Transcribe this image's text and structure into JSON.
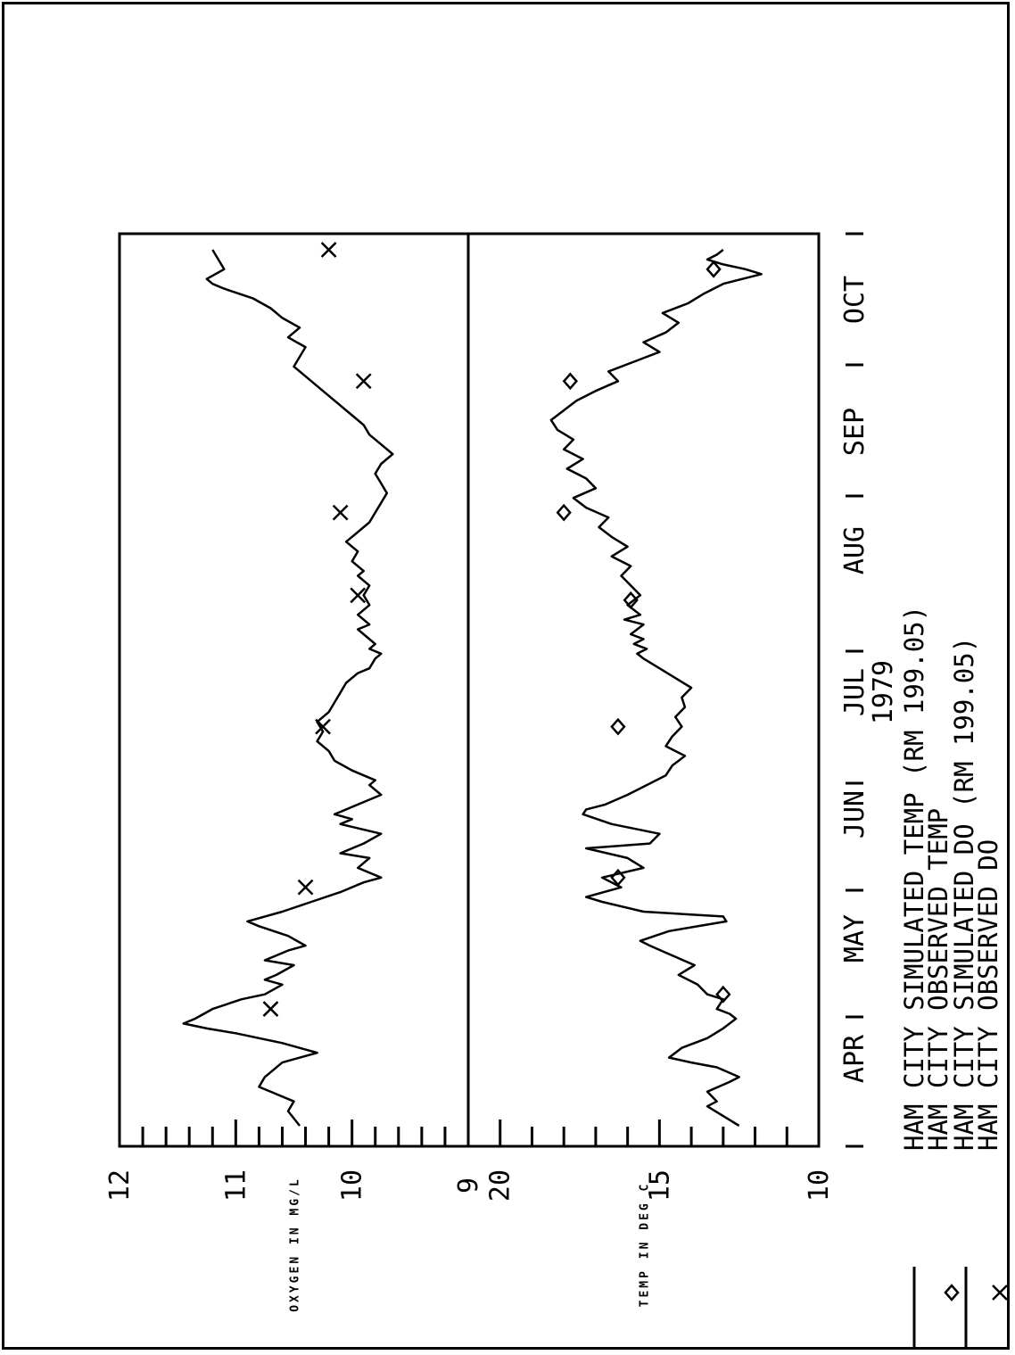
{
  "chart_data": {
    "type": "line",
    "year_label": "1979",
    "x_ticks": [
      "APR",
      "MAY",
      "JUN",
      "JUL",
      "AUG",
      "SEP",
      "OCT"
    ],
    "x_range": [
      "1979-03-20",
      "1979-10-20"
    ],
    "panels": [
      {
        "ylabel": "OXYGEN IN MG/L",
        "ylim": [
          9,
          12
        ],
        "yticks": [
          "9",
          "10",
          "11",
          "12"
        ],
        "series": [
          {
            "name": "HAM CITY SIMULATED DO (RM 199.05)",
            "style": "line",
            "points": [
              [
                0,
                10.45
              ],
              [
                3,
                10.55
              ],
              [
                5,
                10.5
              ],
              [
                8,
                10.8
              ],
              [
                10,
                10.75
              ],
              [
                13,
                10.6
              ],
              [
                15,
                10.3
              ],
              [
                17,
                10.6
              ],
              [
                19,
                11.0
              ],
              [
                20,
                11.25
              ],
              [
                21,
                11.45
              ],
              [
                22,
                11.35
              ],
              [
                24,
                11.2
              ],
              [
                26,
                10.95
              ],
              [
                27,
                10.75
              ],
              [
                29,
                10.6
              ],
              [
                30,
                10.75
              ],
              [
                31,
                10.65
              ],
              [
                33,
                10.5
              ],
              [
                34,
                10.75
              ],
              [
                36,
                10.55
              ],
              [
                37,
                10.4
              ],
              [
                39,
                10.55
              ],
              [
                41,
                10.8
              ],
              [
                42,
                10.9
              ],
              [
                44,
                10.6
              ],
              [
                46,
                10.35
              ],
              [
                48,
                10.1
              ],
              [
                50,
                9.9
              ],
              [
                51,
                9.75
              ],
              [
                53,
                9.95
              ],
              [
                55,
                9.85
              ],
              [
                56,
                10.1
              ],
              [
                58,
                9.9
              ],
              [
                60,
                9.75
              ],
              [
                62,
                10.1
              ],
              [
                63,
                10.0
              ],
              [
                64,
                10.15
              ],
              [
                66,
                9.95
              ],
              [
                68,
                9.75
              ],
              [
                70,
                9.85
              ],
              [
                71,
                9.8
              ],
              [
                73,
                10.0
              ],
              [
                75,
                10.15
              ],
              [
                77,
                10.2
              ],
              [
                79,
                10.3
              ],
              [
                81,
                10.25
              ],
              [
                83,
                10.3
              ],
              [
                85,
                10.2
              ],
              [
                87,
                10.15
              ],
              [
                89,
                10.1
              ],
              [
                91,
                10.05
              ],
              [
                93,
                9.95
              ],
              [
                94,
                9.85
              ],
              [
                96,
                9.8
              ],
              [
                97,
                9.75
              ],
              [
                98,
                9.85
              ],
              [
                99,
                9.8
              ],
              [
                101,
                9.9
              ],
              [
                102,
                9.95
              ],
              [
                103,
                9.85
              ],
              [
                105,
                9.95
              ],
              [
                107,
                9.85
              ],
              [
                109,
                9.9
              ],
              [
                111,
                9.85
              ],
              [
                113,
                9.95
              ],
              [
                114,
                9.9
              ],
              [
                116,
                10.0
              ],
              [
                118,
                9.95
              ],
              [
                120,
                10.05
              ],
              [
                122,
                9.95
              ],
              [
                124,
                9.85
              ],
              [
                126,
                9.8
              ],
              [
                128,
                9.75
              ],
              [
                130,
                9.7
              ],
              [
                132,
                9.75
              ],
              [
                134,
                9.8
              ],
              [
                136,
                9.75
              ],
              [
                138,
                9.65
              ],
              [
                140,
                9.75
              ],
              [
                142,
                9.85
              ],
              [
                144,
                9.9
              ],
              [
                146,
                10.0
              ],
              [
                148,
                10.1
              ],
              [
                150,
                10.2
              ],
              [
                152,
                10.3
              ],
              [
                154,
                10.4
              ],
              [
                156,
                10.5
              ],
              [
                158,
                10.45
              ],
              [
                160,
                10.4
              ],
              [
                162,
                10.55
              ],
              [
                164,
                10.45
              ],
              [
                166,
                10.6
              ],
              [
                168,
                10.7
              ],
              [
                170,
                10.85
              ],
              [
                172,
                11.1
              ],
              [
                173,
                11.2
              ],
              [
                174,
                11.25
              ],
              [
                176,
                11.1
              ],
              [
                178,
                11.15
              ],
              [
                180,
                11.2
              ]
            ]
          },
          {
            "name": "HAM CITY OBSERVED DO",
            "style": "marker-x",
            "points": [
              [
                24,
                10.7
              ],
              [
                49,
                10.4
              ],
              [
                82,
                10.25
              ],
              [
                109,
                9.95
              ],
              [
                126,
                10.1
              ],
              [
                153,
                9.9
              ],
              [
                180,
                10.2
              ]
            ]
          }
        ]
      },
      {
        "ylabel": "TEMP IN DEG C",
        "ylim": [
          10,
          21
        ],
        "yticks": [
          "10",
          "15",
          "20"
        ],
        "series": [
          {
            "name": "HAM CITY SIMULATED TEMP (RM 199.05)",
            "style": "line",
            "points": [
              [
                0,
                12.5
              ],
              [
                2,
                13.0
              ],
              [
                4,
                13.5
              ],
              [
                5,
                13.2
              ],
              [
                7,
                13.5
              ],
              [
                9,
                12.8
              ],
              [
                10,
                12.5
              ],
              [
                12,
                13.2
              ],
              [
                13,
                14.0
              ],
              [
                14,
                14.7
              ],
              [
                16,
                14.3
              ],
              [
                18,
                13.5
              ],
              [
                20,
                13.0
              ],
              [
                22,
                12.6
              ],
              [
                23,
                12.8
              ],
              [
                24,
                13.2
              ],
              [
                26,
                13.0
              ],
              [
                27,
                13.5
              ],
              [
                29,
                13.8
              ],
              [
                31,
                14.4
              ],
              [
                33,
                13.9
              ],
              [
                35,
                14.6
              ],
              [
                37,
                15.3
              ],
              [
                38,
                15.6
              ],
              [
                40,
                14.7
              ],
              [
                42,
                12.9
              ],
              [
                43,
                13.0
              ],
              [
                44,
                15.5
              ],
              [
                46,
                16.8
              ],
              [
                47,
                17.3
              ],
              [
                49,
                16.2
              ],
              [
                51,
                16.8
              ],
              [
                53,
                15.5
              ],
              [
                55,
                16.0
              ],
              [
                57,
                17.3
              ],
              [
                58,
                15.3
              ],
              [
                60,
                15.0
              ],
              [
                62,
                16.5
              ],
              [
                64,
                17.4
              ],
              [
                65,
                17.3
              ],
              [
                66,
                16.7
              ],
              [
                68,
                16.0
              ],
              [
                70,
                15.4
              ],
              [
                72,
                14.8
              ],
              [
                74,
                14.6
              ],
              [
                76,
                14.2
              ],
              [
                78,
                14.8
              ],
              [
                80,
                14.6
              ],
              [
                82,
                14.3
              ],
              [
                84,
                14.5
              ],
              [
                86,
                14.2
              ],
              [
                88,
                14.3
              ],
              [
                90,
                14.0
              ],
              [
                92,
                14.5
              ],
              [
                94,
                15.0
              ],
              [
                96,
                15.5
              ],
              [
                97,
                15.7
              ],
              [
                98,
                15.4
              ],
              [
                99,
                15.8
              ],
              [
                100,
                15.5
              ],
              [
                101,
                15.9
              ],
              [
                103,
                15.5
              ],
              [
                104,
                16.1
              ],
              [
                105,
                15.6
              ],
              [
                107,
                16.0
              ],
              [
                109,
                15.6
              ],
              [
                111,
                15.9
              ],
              [
                113,
                16.2
              ],
              [
                115,
                15.9
              ],
              [
                117,
                16.5
              ],
              [
                119,
                16.0
              ],
              [
                121,
                16.5
              ],
              [
                123,
                16.9
              ],
              [
                125,
                16.6
              ],
              [
                127,
                17.3
              ],
              [
                129,
                17.7
              ],
              [
                131,
                17.0
              ],
              [
                133,
                17.3
              ],
              [
                135,
                17.9
              ],
              [
                137,
                17.4
              ],
              [
                139,
                18.0
              ],
              [
                141,
                17.7
              ],
              [
                143,
                18.2
              ],
              [
                145,
                18.4
              ],
              [
                147,
                18.0
              ],
              [
                149,
                17.6
              ],
              [
                151,
                17.0
              ],
              [
                153,
                16.3
              ],
              [
                155,
                16.6
              ],
              [
                157,
                15.8
              ],
              [
                159,
                15.0
              ],
              [
                161,
                15.5
              ],
              [
                163,
                14.8
              ],
              [
                165,
                14.4
              ],
              [
                167,
                14.9
              ],
              [
                169,
                14.1
              ],
              [
                171,
                13.6
              ],
              [
                173,
                13.0
              ],
              [
                174,
                12.4
              ],
              [
                175,
                11.8
              ],
              [
                176,
                12.3
              ],
              [
                177,
                13.0
              ],
              [
                178,
                13.5
              ],
              [
                179,
                13.2
              ],
              [
                180,
                13.0
              ]
            ]
          },
          {
            "name": "HAM CITY OBSERVED TEMP",
            "style": "marker-diamond",
            "points": [
              [
                27,
                13.0
              ],
              [
                51,
                16.3
              ],
              [
                82,
                16.3
              ],
              [
                108,
                15.9
              ],
              [
                126,
                18.0
              ],
              [
                153,
                17.8
              ],
              [
                176,
                13.3
              ]
            ]
          }
        ]
      }
    ],
    "legend": [
      {
        "symbol": "line",
        "text": "HAM CITY SIMULATED TEMP (RM 199.05)"
      },
      {
        "symbol": "diamond",
        "text": "HAM CITY OBSERVED TEMP"
      },
      {
        "symbol": "line",
        "text": "HAM CITY SIMULATED DO (RM 199.05)"
      },
      {
        "symbol": "x",
        "text": "HAM CITY OBSERVED DO"
      }
    ]
  }
}
